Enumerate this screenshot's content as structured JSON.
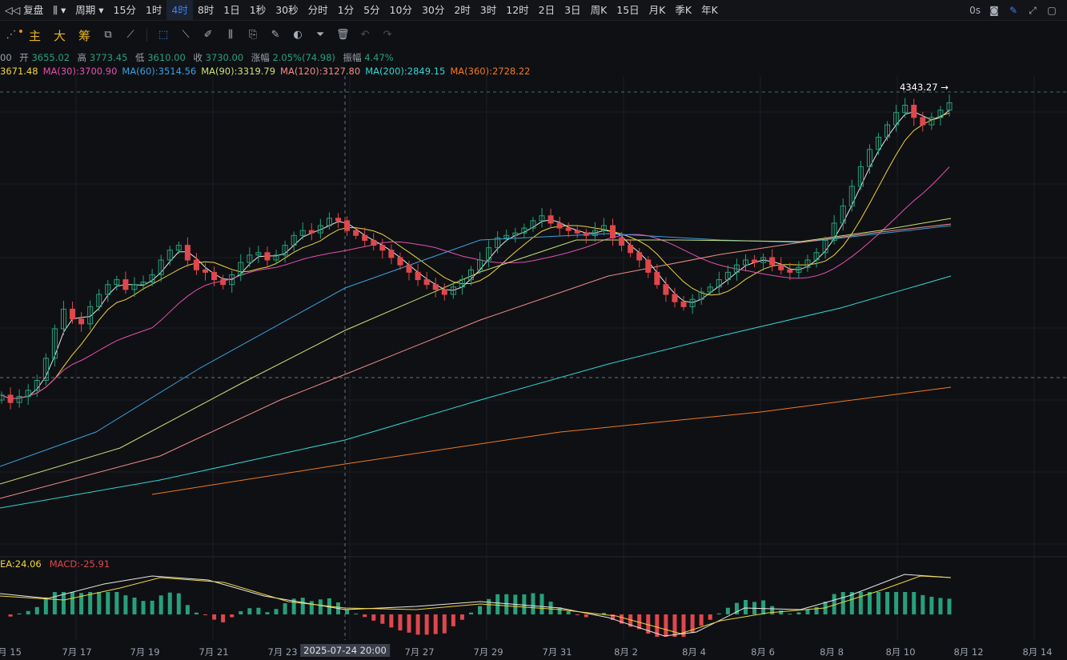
{
  "toolbar": {
    "restore_label": "复盘",
    "period_label": "周期",
    "timeframes": [
      "15分",
      "1时",
      "4时",
      "8时",
      "1日",
      "1秒",
      "30秒",
      "分时",
      "1分",
      "5分",
      "10分",
      "30分",
      "2时",
      "3时",
      "12时",
      "2日",
      "3日",
      "周K",
      "15日",
      "月K",
      "季K",
      "年K"
    ],
    "active_timeframe": "4时",
    "refresh": "0s"
  },
  "tools": {
    "main": "主",
    "big": "大",
    "chips": "筹"
  },
  "ohlc": {
    "open_label": "开",
    "open": "3655.02",
    "high_label": "高",
    "high": "3773.45",
    "low_label": "低",
    "low": "3610.00",
    "close_label": "收",
    "close": "3730.00",
    "change_label": "涨幅",
    "change": "2.05%(74.98)",
    "amp_label": "振幅",
    "amp": "4.47%",
    "prefix": "00"
  },
  "ma_legend": [
    {
      "text": "3671.48",
      "color": "#f0d43a"
    },
    {
      "text": "MA(30):3700.90",
      "color": "#e44fb3"
    },
    {
      "text": "MA(60):3514.56",
      "color": "#3aa0e0"
    },
    {
      "text": "MA(90):3319.79",
      "color": "#c8e07a"
    },
    {
      "text": "MA(120):3127.80",
      "color": "#f08c8c"
    },
    {
      "text": "MA(200):2849.15",
      "color": "#2fd6d6"
    },
    {
      "text": "MA(360):2728.22",
      "color": "#f07a20"
    }
  ],
  "macd_legend": [
    {
      "text": "EA:24.06",
      "color": "#f0d43a"
    },
    {
      "text": "MACD:-25.91",
      "color": "#e0474c"
    }
  ],
  "price_tag": "4343.27 →",
  "x_axis": {
    "labels": [
      "月 15",
      "7月 17",
      "7月 19",
      "7月 21",
      "7月 23",
      "7月 27",
      "7月 29",
      "7月 31",
      "8月 2",
      "8月 4",
      "8月 6",
      "8月 8",
      "8月 10",
      "8月 12",
      "8月 14"
    ],
    "cursor_label": "2025-07-24 20:00"
  },
  "chart_data": {
    "type": "candlestick",
    "up_color": "#26a17a",
    "down_color": "#e0474c",
    "last_high": 4343.27,
    "closes": [
      3150,
      3120,
      3145,
      3170,
      3210,
      3300,
      3420,
      3500,
      3460,
      3440,
      3510,
      3560,
      3600,
      3620,
      3580,
      3600,
      3610,
      3640,
      3700,
      3740,
      3760,
      3700,
      3660,
      3650,
      3620,
      3600,
      3640,
      3690,
      3720,
      3730,
      3700,
      3720,
      3760,
      3800,
      3820,
      3810,
      3840,
      3870,
      3860,
      3820,
      3800,
      3780,
      3760,
      3740,
      3710,
      3680,
      3650,
      3620,
      3600,
      3580,
      3560,
      3590,
      3620,
      3660,
      3700,
      3750,
      3790,
      3800,
      3810,
      3830,
      3860,
      3880,
      3850,
      3830,
      3820,
      3810,
      3800,
      3820,
      3840,
      3790,
      3760,
      3730,
      3700,
      3650,
      3600,
      3560,
      3530,
      3510,
      3540,
      3570,
      3590,
      3620,
      3650,
      3680,
      3700,
      3690,
      3710,
      3680,
      3660,
      3650,
      3670,
      3700,
      3730,
      3780,
      3850,
      3920,
      4000,
      4080,
      4150,
      4200,
      4250,
      4300,
      4330,
      4280,
      4250,
      4280,
      4310,
      4340
    ],
    "ma_series": [
      "MA(30)",
      "MA(60)",
      "MA(90)",
      "MA(120)",
      "MA(200)",
      "MA(360)"
    ],
    "macd": {
      "dea": 24.06,
      "macd": -25.91
    }
  }
}
